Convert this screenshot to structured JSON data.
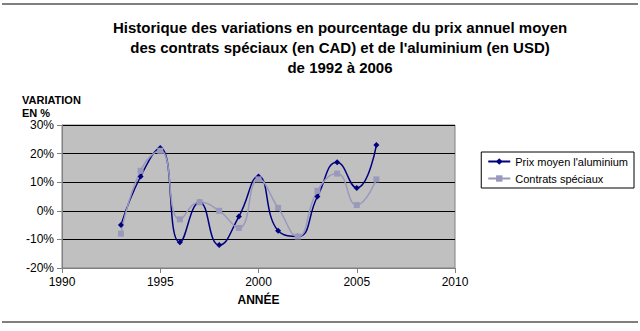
{
  "chart_data": {
    "type": "line",
    "title": "Historique des variations en pourcentage du prix annuel moyen\ndes contrats spéciaux (en CAD) et de l'aluminium (en USD)\nde 1992 à 2006",
    "ylabel": "VARIATION\nEN %",
    "xlabel": "ANNÉE",
    "x": [
      1993,
      1994,
      1995,
      1996,
      1997,
      1998,
      1999,
      2000,
      2001,
      2002,
      2003,
      2004,
      2005,
      2006
    ],
    "series": [
      {
        "name": "Prix moyen l'aluminium",
        "color": "#000080",
        "marker": "diamond",
        "line_style": "solid",
        "values": [
          -5,
          12,
          22,
          -11,
          3,
          -12,
          -2,
          12,
          -7,
          -9,
          5,
          17,
          8,
          23
        ]
      },
      {
        "name": "Contrats spéciaux",
        "color": "#9999bb",
        "marker": "square",
        "line_style": "solid",
        "values": [
          -8,
          14,
          21,
          -3,
          3,
          0,
          -6,
          11,
          1,
          -9,
          7,
          13,
          2,
          11
        ]
      }
    ],
    "xlim": [
      1990,
      2010
    ],
    "xticks": [
      1990,
      1995,
      2000,
      2005,
      2010
    ],
    "ylim": [
      -20,
      30
    ],
    "yticks": [
      {
        "value": -20,
        "label": "-20%"
      },
      {
        "value": -10,
        "label": "-10%"
      },
      {
        "value": 0,
        "label": "0%"
      },
      {
        "value": 10,
        "label": "10%"
      },
      {
        "value": 20,
        "label": "20%"
      },
      {
        "value": 30,
        "label": "30%"
      }
    ],
    "grid": true,
    "legend": "right"
  }
}
